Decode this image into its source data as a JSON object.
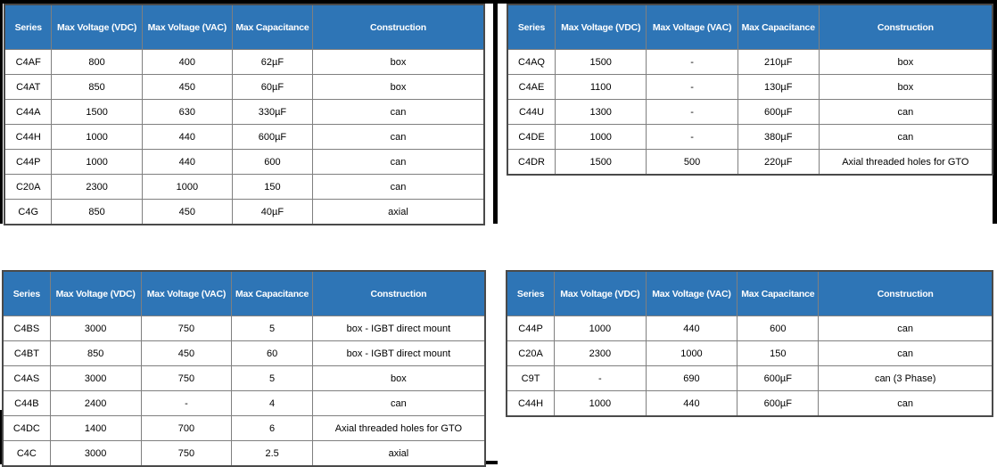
{
  "colors": {
    "header_bg": "#2e75b6",
    "header_text": "#ffffff",
    "body_text": "#000000",
    "grid_line": "#7f7f7f",
    "table_outer_border": "#4a4a4a",
    "frame": "#000000",
    "background": "#ffffff"
  },
  "columns": [
    "Series",
    "Max Voltage (VDC)",
    "Max Voltage (VAC)",
    "Max Capacitance",
    "Construction"
  ],
  "tables": [
    {
      "name": "top-left",
      "rows": [
        [
          "C4AF",
          "800",
          "400",
          "62µF",
          "box"
        ],
        [
          "C4AT",
          "850",
          "450",
          "60µF",
          "box"
        ],
        [
          "C44A",
          "1500",
          "630",
          "330µF",
          "can"
        ],
        [
          "C44H",
          "1000",
          "440",
          "600µF",
          "can"
        ],
        [
          "C44P",
          "1000",
          "440",
          "600",
          "can"
        ],
        [
          "C20A",
          "2300",
          "1000",
          "150",
          "can"
        ],
        [
          "C4G",
          "850",
          "450",
          "40µF",
          "axial"
        ]
      ]
    },
    {
      "name": "top-right",
      "rows": [
        [
          "C4AQ",
          "1500",
          "-",
          "210µF",
          "box"
        ],
        [
          "C4AE",
          "1100",
          "-",
          "130µF",
          "box"
        ],
        [
          "C44U",
          "1300",
          "-",
          "600µF",
          "can"
        ],
        [
          "C4DE",
          "1000",
          "-",
          "380µF",
          "can"
        ],
        [
          "C4DR",
          "1500",
          "500",
          "220µF",
          "Axial threaded holes for GTO"
        ]
      ]
    },
    {
      "name": "bottom-left",
      "rows": [
        [
          "C4BS",
          "3000",
          "750",
          "5",
          "box - IGBT direct mount"
        ],
        [
          "C4BT",
          "850",
          "450",
          "60",
          "box - IGBT direct mount"
        ],
        [
          "C4AS",
          "3000",
          "750",
          "5",
          "box"
        ],
        [
          "C44B",
          "2400",
          "-",
          "4",
          "can"
        ],
        [
          "C4DC",
          "1400",
          "700",
          "6",
          "Axial threaded holes for GTO"
        ],
        [
          "C4C",
          "3000",
          "750",
          "2.5",
          "axial"
        ]
      ]
    },
    {
      "name": "bottom-right",
      "rows": [
        [
          "C44P",
          "1000",
          "440",
          "600",
          "can"
        ],
        [
          "C20A",
          "2300",
          "1000",
          "150",
          "can"
        ],
        [
          "C9T",
          "-",
          "690",
          "600µF",
          "can (3 Phase)"
        ],
        [
          "C44H",
          "1000",
          "440",
          "600µF",
          "can"
        ]
      ]
    }
  ]
}
